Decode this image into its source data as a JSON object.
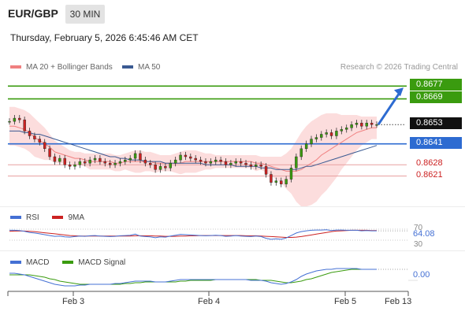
{
  "header": {
    "symbol": "EUR/GBP",
    "timeframe": "30 MIN",
    "datetime": "Thursday, February 5, 2026 6:45:46 AM CET"
  },
  "legend": {
    "ma20_label": "MA 20 + Bollinger Bands",
    "ma50_label": "MA 50",
    "ma20_color": "#f08080",
    "ma50_color": "#3a5a92"
  },
  "credit": "Research © 2026 Trading Central",
  "colors": {
    "green": "#3a9b0f",
    "blue": "#2d6bd1",
    "red": "#cc2222",
    "bull": "#3a9b0f",
    "bear": "#cc2222",
    "band": "#fbd7d7"
  },
  "chart_data": {
    "type": "candlestick",
    "instrument": "EUR/GBP",
    "x_ticks": [
      "Feb 3",
      "Feb 4",
      "Feb 5",
      "Feb 13"
    ],
    "ylim": [
      0.8608,
      0.8684
    ],
    "levels": [
      {
        "label": "0.8677",
        "value": 0.8677,
        "style": "resistance-green"
      },
      {
        "label": "0.8669",
        "value": 0.8669,
        "style": "resistance-green"
      },
      {
        "label": "0.8653",
        "value": 0.8653,
        "style": "last-price"
      },
      {
        "label": "0.8641",
        "value": 0.8641,
        "style": "pivot-blue"
      },
      {
        "label": "0.8628",
        "value": 0.8628,
        "style": "support-red"
      },
      {
        "label": "0.8621",
        "value": 0.8621,
        "style": "support-red"
      }
    ],
    "close": [
      0.8655,
      0.8657,
      0.8656,
      0.8649,
      0.8646,
      0.8644,
      0.8642,
      0.8638,
      0.8633,
      0.863,
      0.8632,
      0.8628,
      0.8627,
      0.8628,
      0.863,
      0.8629,
      0.8631,
      0.8632,
      0.863,
      0.8629,
      0.8628,
      0.8629,
      0.863,
      0.8631,
      0.8632,
      0.8635,
      0.8631,
      0.8629,
      0.8628,
      0.8625,
      0.8627,
      0.8626,
      0.8629,
      0.8631,
      0.8634,
      0.8633,
      0.8632,
      0.8631,
      0.863,
      0.8629,
      0.863,
      0.8631,
      0.863,
      0.8628,
      0.8629,
      0.863,
      0.8629,
      0.8628,
      0.8627,
      0.8628,
      0.8627,
      0.8622,
      0.8617,
      0.8618,
      0.8616,
      0.8619,
      0.8626,
      0.8633,
      0.8638,
      0.8641,
      0.8644,
      0.8645,
      0.8647,
      0.8648,
      0.8646,
      0.8649,
      0.865,
      0.8651,
      0.8653,
      0.8654,
      0.8652,
      0.8654,
      0.8653,
      0.8653
    ],
    "ma20_bollinger": {
      "mid": [
        0.8652,
        0.8652,
        0.8651,
        0.865,
        0.8648,
        0.8645,
        0.8643,
        0.8641,
        0.8639,
        0.8636,
        0.8635,
        0.8634,
        0.8633,
        0.8632,
        0.8632,
        0.8631,
        0.863,
        0.863,
        0.863,
        0.863,
        0.863,
        0.8629,
        0.8629,
        0.863,
        0.863,
        0.863,
        0.863,
        0.863,
        0.863,
        0.8629,
        0.8629,
        0.8629,
        0.8629,
        0.8629,
        0.8629,
        0.863,
        0.863,
        0.863,
        0.863,
        0.863,
        0.863,
        0.863,
        0.863,
        0.863,
        0.863,
        0.863,
        0.863,
        0.863,
        0.863,
        0.8629,
        0.8629,
        0.8628,
        0.8627,
        0.8626,
        0.8625,
        0.8624,
        0.8624,
        0.8624,
        0.8625,
        0.8627,
        0.8629,
        0.8631,
        0.8634,
        0.8636,
        0.8638,
        0.864,
        0.8642,
        0.8644,
        0.8646,
        0.8648,
        0.8649,
        0.865,
        0.8651,
        0.8651
      ],
      "upper": [
        0.8664,
        0.8664,
        0.8663,
        0.8662,
        0.866,
        0.8657,
        0.8654,
        0.8651,
        0.8647,
        0.8643,
        0.8641,
        0.8639,
        0.8637,
        0.8636,
        0.8636,
        0.8635,
        0.8635,
        0.8635,
        0.8635,
        0.8635,
        0.8635,
        0.8634,
        0.8634,
        0.8635,
        0.8636,
        0.8637,
        0.8637,
        0.8636,
        0.8636,
        0.8635,
        0.8634,
        0.8634,
        0.8634,
        0.8635,
        0.8636,
        0.8637,
        0.8637,
        0.8637,
        0.8636,
        0.8635,
        0.8635,
        0.8634,
        0.8634,
        0.8634,
        0.8634,
        0.8634,
        0.8634,
        0.8634,
        0.8634,
        0.8634,
        0.8633,
        0.8633,
        0.8633,
        0.8633,
        0.8633,
        0.8635,
        0.8638,
        0.8643,
        0.8648,
        0.8652,
        0.8655,
        0.8657,
        0.8659,
        0.866,
        0.866,
        0.866,
        0.8659,
        0.8659,
        0.8659,
        0.8659,
        0.8658,
        0.8658,
        0.8658,
        0.8658
      ],
      "lower": [
        0.864,
        0.864,
        0.8639,
        0.8638,
        0.8636,
        0.8633,
        0.8632,
        0.8631,
        0.8631,
        0.8629,
        0.8629,
        0.8629,
        0.8629,
        0.8628,
        0.8628,
        0.8627,
        0.8625,
        0.8625,
        0.8625,
        0.8625,
        0.8625,
        0.8624,
        0.8624,
        0.8625,
        0.8624,
        0.8623,
        0.8623,
        0.8624,
        0.8624,
        0.8623,
        0.8624,
        0.8624,
        0.8624,
        0.8623,
        0.8622,
        0.8623,
        0.8623,
        0.8623,
        0.8624,
        0.8625,
        0.8625,
        0.8626,
        0.8626,
        0.8626,
        0.8626,
        0.8626,
        0.8626,
        0.8626,
        0.8626,
        0.8624,
        0.8625,
        0.8623,
        0.8621,
        0.8619,
        0.8617,
        0.8613,
        0.861,
        0.8605,
        0.8602,
        0.8602,
        0.8603,
        0.8605,
        0.8609,
        0.8612,
        0.8616,
        0.862,
        0.8625,
        0.8629,
        0.8633,
        0.8637,
        0.864,
        0.8642,
        0.8644,
        0.8644
      ]
    },
    "ma50": [
      0.8649,
      0.8649,
      0.8649,
      0.8648,
      0.8648,
      0.8647,
      0.8647,
      0.8646,
      0.8645,
      0.8644,
      0.8643,
      0.8642,
      0.8641,
      0.864,
      0.8639,
      0.8638,
      0.8637,
      0.8636,
      0.8635,
      0.8634,
      0.8633,
      0.8633,
      0.8632,
      0.8632,
      0.8631,
      0.8631,
      0.8631,
      0.863,
      0.863,
      0.863,
      0.863,
      0.8629,
      0.8629,
      0.8629,
      0.8629,
      0.8629,
      0.8629,
      0.8629,
      0.8629,
      0.8628,
      0.8628,
      0.8628,
      0.8628,
      0.8628,
      0.8628,
      0.8627,
      0.8627,
      0.8627,
      0.8627,
      0.8627,
      0.8626,
      0.8626,
      0.8626,
      0.8625,
      0.8625,
      0.8625,
      0.8625,
      0.8625,
      0.8626,
      0.8627,
      0.8627,
      0.8628,
      0.8629,
      0.863,
      0.8631,
      0.8632,
      0.8633,
      0.8634,
      0.8635,
      0.8636,
      0.8637,
      0.8638,
      0.8639,
      0.864
    ],
    "projection": {
      "from": 0.8653,
      "to": 0.8677
    },
    "indicators": {
      "rsi": {
        "label": "RSI",
        "signal_label": "9MA",
        "value_label": "64.08",
        "level_labels": [
          "70",
          "30"
        ],
        "rsi_color": "#4470d4",
        "signal_color": "#cc2222",
        "rsi": [
          66,
          66,
          65,
          62,
          58,
          56,
          53,
          50,
          47,
          44,
          45,
          42,
          41,
          43,
          45,
          44,
          46,
          47,
          45,
          44,
          43,
          44,
          46,
          47,
          48,
          52,
          45,
          43,
          42,
          39,
          42,
          41,
          45,
          48,
          51,
          50,
          49,
          48,
          47,
          46,
          47,
          48,
          47,
          44,
          45,
          47,
          45,
          44,
          43,
          45,
          43,
          37,
          33,
          35,
          33,
          38,
          47,
          56,
          61,
          64,
          66,
          67,
          67,
          68,
          65,
          67,
          67,
          66,
          66,
          66,
          64,
          65,
          64,
          64
        ],
        "signal": [
          62,
          63,
          63,
          63,
          62,
          61,
          59,
          57,
          55,
          53,
          51,
          49,
          47,
          46,
          45,
          45,
          45,
          45,
          45,
          45,
          45,
          45,
          45,
          45,
          45,
          46,
          46,
          46,
          46,
          45,
          45,
          44,
          44,
          44,
          45,
          45,
          46,
          46,
          47,
          47,
          47,
          47,
          47,
          47,
          47,
          47,
          47,
          46,
          46,
          46,
          45,
          44,
          43,
          42,
          41,
          40,
          40,
          41,
          43,
          46,
          49,
          52,
          55,
          58,
          61,
          63,
          64,
          65,
          66,
          66,
          66,
          66,
          65,
          65
        ]
      },
      "macd": {
        "label": "MACD",
        "signal_label": "MACD Signal",
        "value_label": "0.00",
        "macd_color": "#4470d4",
        "signal_color": "#3a9b0f",
        "macd": [
          5,
          5,
          4,
          3,
          1,
          -1,
          -3,
          -5,
          -7,
          -9,
          -10,
          -11,
          -11,
          -11,
          -10,
          -10,
          -9,
          -9,
          -9,
          -9,
          -9,
          -8,
          -8,
          -7,
          -6,
          -5,
          -5,
          -5,
          -5,
          -6,
          -6,
          -6,
          -5,
          -4,
          -3,
          -3,
          -3,
          -3,
          -3,
          -3,
          -3,
          -3,
          -3,
          -3,
          -3,
          -3,
          -3,
          -3,
          -4,
          -4,
          -4,
          -5,
          -7,
          -8,
          -9,
          -8,
          -6,
          -3,
          1,
          4,
          6,
          8,
          9,
          10,
          10,
          11,
          11,
          11,
          11,
          11,
          10,
          10,
          10,
          10
        ],
        "signal": [
          3,
          3,
          3,
          3,
          3,
          2,
          1,
          0,
          -2,
          -3,
          -5,
          -6,
          -7,
          -8,
          -9,
          -9,
          -9,
          -9,
          -9,
          -9,
          -9,
          -9,
          -9,
          -8,
          -8,
          -7,
          -7,
          -6,
          -6,
          -6,
          -6,
          -6,
          -6,
          -6,
          -5,
          -5,
          -4,
          -4,
          -4,
          -4,
          -4,
          -3,
          -3,
          -3,
          -3,
          -3,
          -3,
          -3,
          -3,
          -3,
          -4,
          -4,
          -4,
          -5,
          -6,
          -7,
          -7,
          -6,
          -5,
          -3,
          -2,
          0,
          2,
          4,
          6,
          7,
          8,
          9,
          10,
          10,
          10,
          10,
          10,
          10
        ]
      }
    }
  }
}
